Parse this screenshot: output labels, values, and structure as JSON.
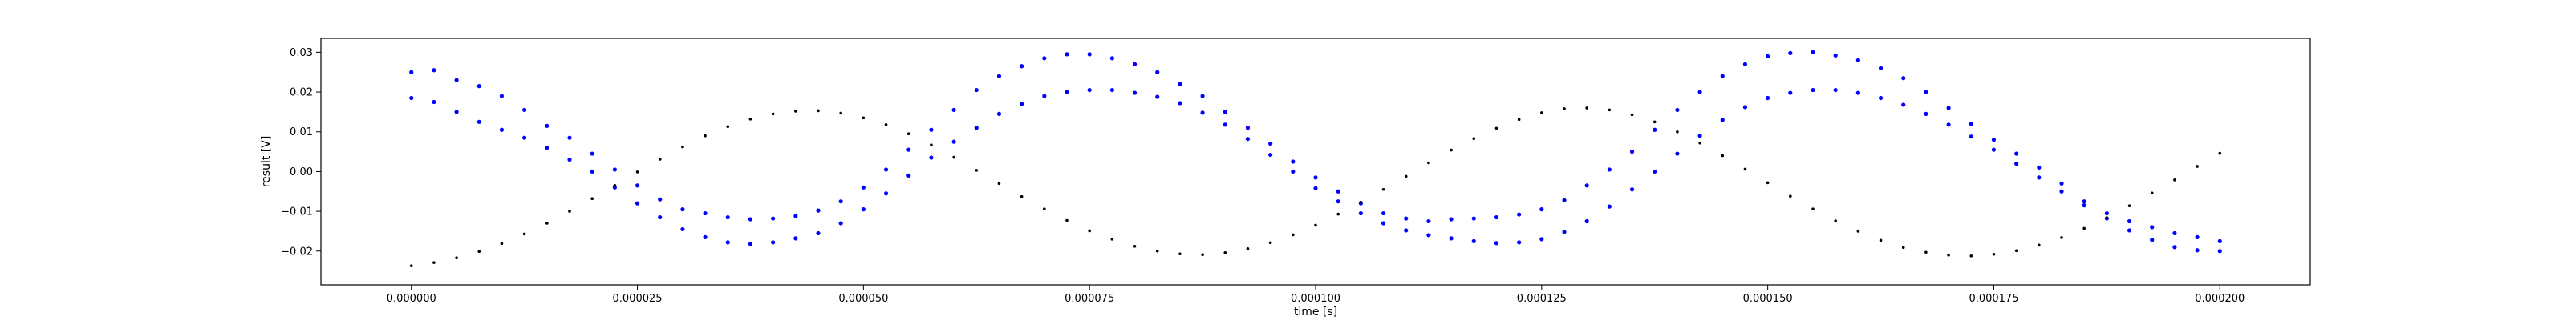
{
  "chart_data": {
    "type": "scatter",
    "title": "",
    "xlabel": "time [s]",
    "ylabel": "result [V]",
    "xlim": [
      -1e-05,
      0.00021
    ],
    "ylim": [
      -0.0285,
      0.0335
    ],
    "grid": false,
    "legend": "none",
    "x_ticks": [
      0.0,
      2.5e-05,
      5e-05,
      7.5e-05,
      0.0001,
      0.000125,
      0.00015,
      0.000175,
      0.0002
    ],
    "x_tick_labels": [
      "0.000000",
      "0.000025",
      "0.000050",
      "0.000075",
      "0.000100",
      "0.000125",
      "0.000150",
      "0.000175",
      "0.000200"
    ],
    "y_ticks": [
      -0.02,
      -0.01,
      0.0,
      0.01,
      0.02,
      0.03
    ],
    "y_tick_labels": [
      "−0.02",
      "−0.01",
      "0.00",
      "0.01",
      "0.02",
      "0.03"
    ],
    "series": [
      {
        "color": "#0000ff",
        "marker_size": 2.6,
        "x": [
          0.0,
          2.5e-06,
          5e-06,
          7.5e-06,
          1e-05,
          1.25e-05,
          1.5e-05,
          1.75e-05,
          2e-05,
          2.25e-05,
          2.5e-05,
          2.75e-05,
          3e-05,
          3.25e-05,
          3.5e-05,
          3.75e-05,
          4e-05,
          4.25e-05,
          4.5e-05,
          4.75e-05,
          5e-05,
          5.25e-05,
          5.5e-05,
          5.75e-05,
          6e-05,
          6.25e-05,
          6.5e-05,
          6.75e-05,
          7e-05,
          7.25e-05,
          7.5e-05,
          7.75e-05,
          8e-05,
          8.25e-05,
          8.5e-05,
          8.75e-05,
          9e-05,
          9.25e-05,
          9.5e-05,
          9.75e-05,
          0.0001,
          0.0001025,
          0.000105,
          0.0001075,
          0.00011,
          0.0001125,
          0.000115,
          0.0001175,
          0.00012,
          0.0001225,
          0.000125,
          0.0001275,
          0.00013,
          0.0001325,
          0.000135,
          0.0001375,
          0.00014,
          0.0001425,
          0.000145,
          0.0001475,
          0.00015,
          0.0001525,
          0.000155,
          0.0001575,
          0.00016,
          0.0001625,
          0.000165,
          0.0001675,
          0.00017,
          0.0001725,
          0.000175,
          0.0001775,
          0.00018,
          0.0001825,
          0.000185,
          0.0001875,
          0.00019,
          0.0001925,
          0.000195,
          0.0001975,
          0.0002
        ],
        "y": [
          0.025,
          0.0255,
          0.023,
          0.0215,
          0.019,
          0.0155,
          0.0115,
          0.0085,
          0.0045,
          0.0005,
          -0.0035,
          -0.007,
          -0.0095,
          -0.0105,
          -0.0115,
          -0.012,
          -0.0118,
          -0.0112,
          -0.0098,
          -0.0075,
          -0.004,
          0.0005,
          0.0055,
          0.0105,
          0.0155,
          0.0205,
          0.024,
          0.0265,
          0.0285,
          0.0295,
          0.0295,
          0.0285,
          0.027,
          0.025,
          0.022,
          0.019,
          0.015,
          0.011,
          0.007,
          0.0025,
          -0.0015,
          -0.005,
          -0.008,
          -0.0105,
          -0.0118,
          -0.0125,
          -0.012,
          -0.0118,
          -0.0115,
          -0.0108,
          -0.0095,
          -0.0072,
          -0.0035,
          0.0005,
          0.005,
          0.0105,
          0.0155,
          0.02,
          0.024,
          0.027,
          0.029,
          0.0298,
          0.03,
          0.0292,
          0.028,
          0.026,
          0.0235,
          0.02,
          0.016,
          0.012,
          0.008,
          0.0045,
          0.001,
          -0.003,
          -0.0075,
          -0.0105,
          -0.0125,
          -0.014,
          -0.0155,
          -0.0165,
          -0.0175
        ]
      },
      {
        "color": "#0000ff",
        "marker_size": 2.6,
        "x": [
          0.0,
          2.5e-06,
          5e-06,
          7.5e-06,
          1e-05,
          1.25e-05,
          1.5e-05,
          1.75e-05,
          2e-05,
          2.25e-05,
          2.5e-05,
          2.75e-05,
          3e-05,
          3.25e-05,
          3.5e-05,
          3.75e-05,
          4e-05,
          4.25e-05,
          4.5e-05,
          4.75e-05,
          5e-05,
          5.25e-05,
          5.5e-05,
          5.75e-05,
          6e-05,
          6.25e-05,
          6.5e-05,
          6.75e-05,
          7e-05,
          7.25e-05,
          7.5e-05,
          7.75e-05,
          8e-05,
          8.25e-05,
          8.5e-05,
          8.75e-05,
          9e-05,
          9.25e-05,
          9.5e-05,
          9.75e-05,
          0.0001,
          0.0001025,
          0.000105,
          0.0001075,
          0.00011,
          0.0001125,
          0.000115,
          0.0001175,
          0.00012,
          0.0001225,
          0.000125,
          0.0001275,
          0.00013,
          0.0001325,
          0.000135,
          0.0001375,
          0.00014,
          0.0001425,
          0.000145,
          0.0001475,
          0.00015,
          0.0001525,
          0.000155,
          0.0001575,
          0.00016,
          0.0001625,
          0.000165,
          0.0001675,
          0.00017,
          0.0001725,
          0.000175,
          0.0001775,
          0.00018,
          0.0001825,
          0.000185,
          0.0001875,
          0.00019,
          0.0001925,
          0.000195,
          0.0001975,
          0.0002
        ],
        "y": [
          0.0185,
          0.0175,
          0.015,
          0.0125,
          0.0105,
          0.0085,
          0.006,
          0.003,
          0.0,
          -0.004,
          -0.008,
          -0.0115,
          -0.0145,
          -0.0165,
          -0.0178,
          -0.0182,
          -0.0178,
          -0.0168,
          -0.0155,
          -0.013,
          -0.0095,
          -0.0055,
          -0.001,
          0.0035,
          0.0075,
          0.011,
          0.0145,
          0.017,
          0.019,
          0.02,
          0.0205,
          0.0205,
          0.0198,
          0.0188,
          0.0172,
          0.0148,
          0.0118,
          0.0082,
          0.0042,
          0.0,
          -0.0042,
          -0.0075,
          -0.0105,
          -0.013,
          -0.0148,
          -0.016,
          -0.0168,
          -0.0175,
          -0.018,
          -0.0178,
          -0.017,
          -0.0152,
          -0.0125,
          -0.0088,
          -0.0045,
          0.0,
          0.0045,
          0.009,
          0.013,
          0.0162,
          0.0185,
          0.0198,
          0.0205,
          0.0205,
          0.0198,
          0.0185,
          0.0168,
          0.0145,
          0.0118,
          0.0088,
          0.0055,
          0.002,
          -0.0015,
          -0.005,
          -0.0085,
          -0.0118,
          -0.0148,
          -0.0172,
          -0.019,
          -0.0198,
          -0.02
        ]
      },
      {
        "color": "#000000",
        "marker_size": 1.8,
        "x": [
          0.0,
          2.5e-06,
          5e-06,
          7.5e-06,
          1e-05,
          1.25e-05,
          1.5e-05,
          1.75e-05,
          2e-05,
          2.25e-05,
          2.5e-05,
          2.75e-05,
          3e-05,
          3.25e-05,
          3.5e-05,
          3.75e-05,
          4e-05,
          4.25e-05,
          4.5e-05,
          4.75e-05,
          5e-05,
          5.25e-05,
          5.5e-05,
          5.75e-05,
          6e-05,
          6.25e-05,
          6.5e-05,
          6.75e-05,
          7e-05,
          7.25e-05,
          7.5e-05,
          7.75e-05,
          8e-05,
          8.25e-05,
          8.5e-05,
          8.75e-05,
          9e-05,
          9.25e-05,
          9.5e-05,
          9.75e-05,
          0.0001,
          0.0001025,
          0.000105,
          0.0001075,
          0.00011,
          0.0001125,
          0.000115,
          0.0001175,
          0.00012,
          0.0001225,
          0.000125,
          0.0001275,
          0.00013,
          0.0001325,
          0.000135,
          0.0001375,
          0.00014,
          0.0001425,
          0.000145,
          0.0001475,
          0.00015,
          0.0001525,
          0.000155,
          0.0001575,
          0.00016,
          0.0001625,
          0.000165,
          0.0001675,
          0.00017,
          0.0001725,
          0.000175,
          0.0001775,
          0.00018,
          0.0001825,
          0.000185,
          0.0001875,
          0.00019,
          0.0001925,
          0.000195,
          0.0001975,
          0.0002
        ],
        "y": [
          -0.0237,
          -0.0229,
          -0.0217,
          -0.0201,
          -0.0181,
          -0.0157,
          -0.013,
          -0.01,
          -0.0068,
          -0.0035,
          -0.0001,
          0.0031,
          0.0062,
          0.009,
          0.0113,
          0.0132,
          0.0145,
          0.0152,
          0.0153,
          0.0147,
          0.0135,
          0.0118,
          0.0095,
          0.0067,
          0.0036,
          0.0003,
          -0.003,
          -0.0063,
          -0.0094,
          -0.0123,
          -0.0149,
          -0.017,
          -0.0188,
          -0.02,
          -0.0207,
          -0.0209,
          -0.0204,
          -0.0194,
          -0.0179,
          -0.0159,
          -0.0135,
          -0.0107,
          -0.0077,
          -0.0045,
          -0.0012,
          0.0022,
          0.0054,
          0.0083,
          0.0109,
          0.0131,
          0.0148,
          0.0158,
          0.016,
          0.0155,
          0.0143,
          0.0125,
          0.01,
          0.0072,
          0.004,
          0.0006,
          -0.0028,
          -0.0062,
          -0.0094,
          -0.0124,
          -0.015,
          -0.0173,
          -0.0191,
          -0.0203,
          -0.021,
          -0.0212,
          -0.0208,
          -0.0199,
          -0.0185,
          -0.0166,
          -0.0143,
          -0.0116,
          -0.0086,
          -0.0054,
          -0.0021,
          0.0013,
          0.0046
        ]
      }
    ]
  }
}
